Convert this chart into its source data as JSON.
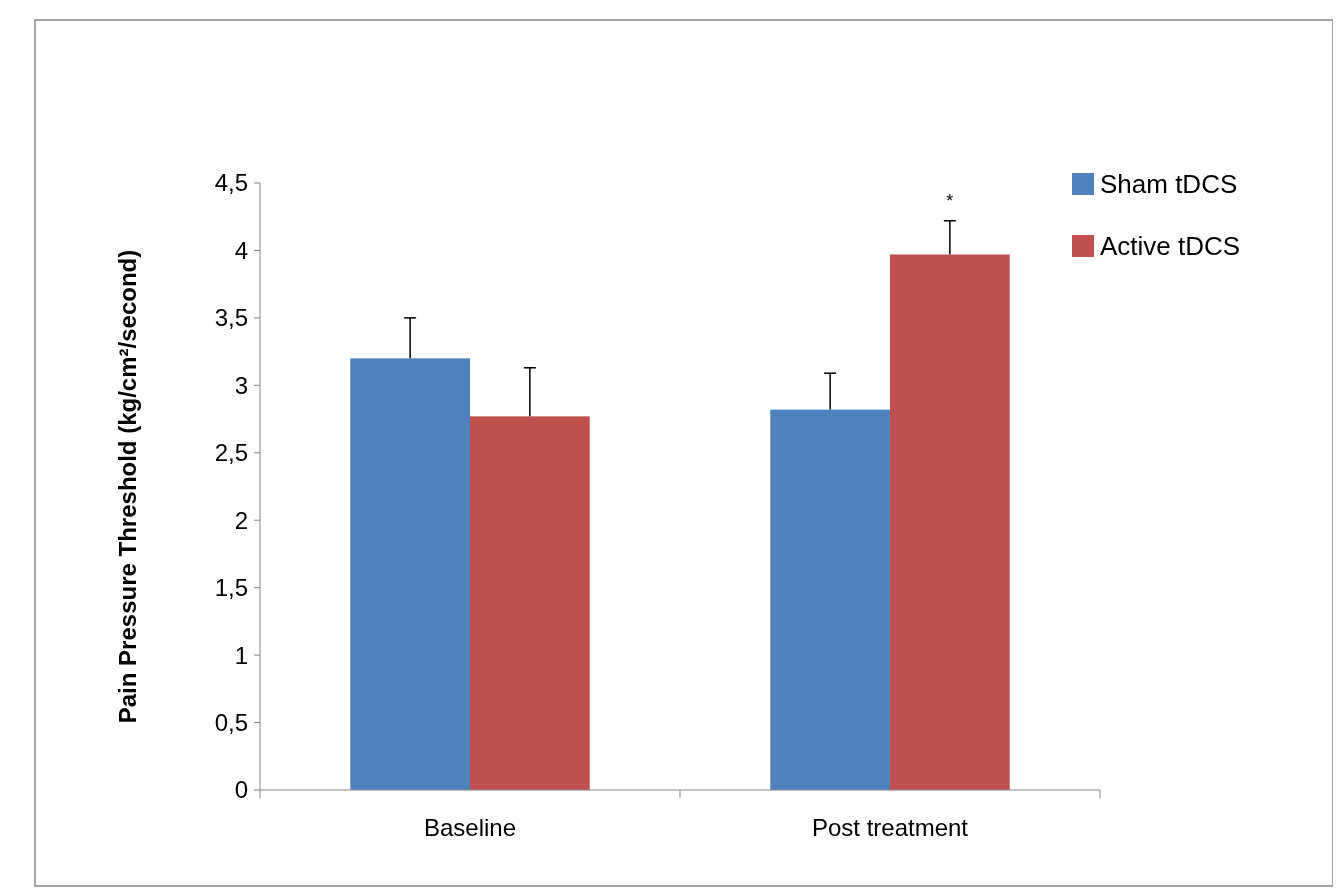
{
  "chart_data": {
    "type": "bar",
    "ylabel": "Pain Pressure Threshold (kg/cm²/second)",
    "categories": [
      "Baseline",
      "Post treatment"
    ],
    "series": [
      {
        "name": "Sham tDCS",
        "color": "#4f81bd",
        "values": [
          3.2,
          2.82
        ],
        "errors": [
          [
            3.2,
            3.5
          ],
          [
            2.82,
            3.09
          ]
        ]
      },
      {
        "name": "Active tDCS",
        "color": "#c0504d",
        "values": [
          2.77,
          3.97
        ],
        "errors": [
          [
            2.77,
            3.13
          ],
          [
            3.97,
            4.22
          ]
        ]
      }
    ],
    "ylim": [
      0,
      4.5
    ],
    "yticks": [
      0,
      {
        "value": 0.5,
        "label": "0,5"
      },
      1,
      {
        "value": 1.5,
        "label": "1,5"
      },
      2,
      {
        "value": 2.5,
        "label": "2,5"
      },
      3,
      {
        "value": 3.5,
        "label": "3,5"
      },
      4,
      {
        "value": 4.5,
        "label": "4,5"
      }
    ],
    "grid": false,
    "legend": "top right",
    "annotations": [
      "*"
    ]
  }
}
